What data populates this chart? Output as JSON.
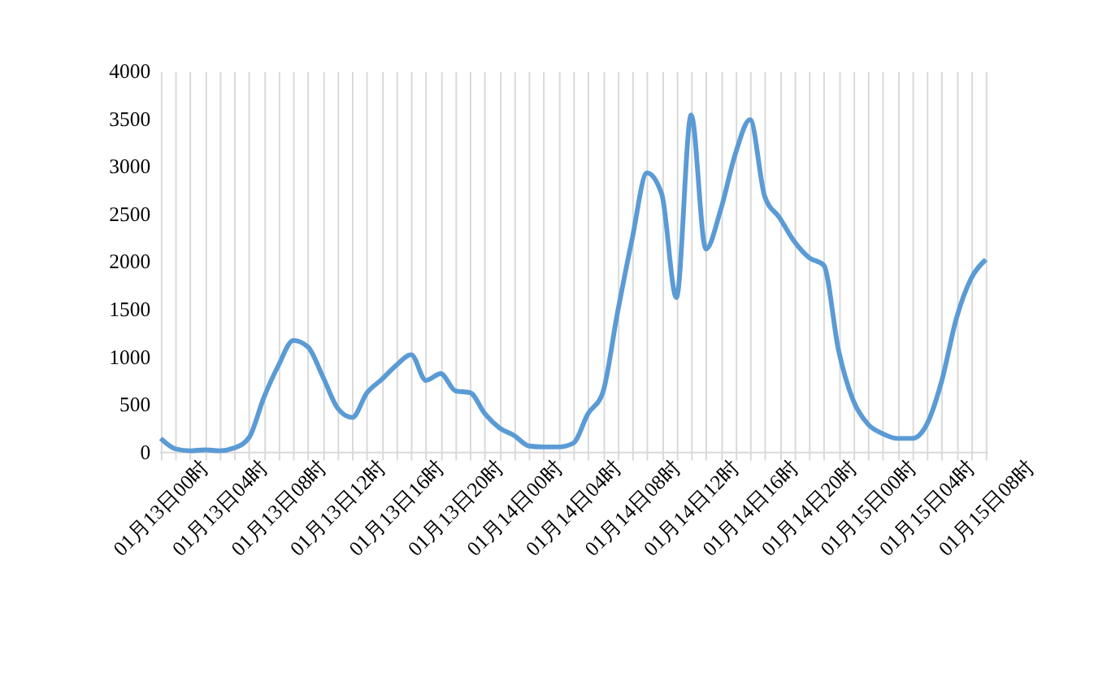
{
  "chart_data": {
    "type": "line",
    "categories": [
      "01月13日00时",
      null,
      null,
      null,
      "01月13日04时",
      null,
      null,
      null,
      "01月13日08时",
      null,
      null,
      null,
      "01月13日12时",
      null,
      null,
      null,
      "01月13日16时",
      null,
      null,
      null,
      "01月13日20时",
      null,
      null,
      null,
      "01月14日00时",
      null,
      null,
      null,
      "01月14日04时",
      null,
      null,
      null,
      "01月14日08时",
      null,
      null,
      null,
      "01月14日12时",
      null,
      null,
      null,
      "01月14日16时",
      null,
      null,
      null,
      "01月14日20时",
      null,
      null,
      null,
      "01月15日00时",
      null,
      null,
      null,
      "01月15日04时",
      null,
      null,
      null,
      "01月15日08时"
    ],
    "series": [
      {
        "color": "#5b9bd5",
        "values": [
          140,
          30,
          10,
          20,
          10,
          40,
          150,
          570,
          910,
          1170,
          1100,
          790,
          460,
          360,
          620,
          760,
          910,
          1020,
          750,
          820,
          640,
          620,
          400,
          250,
          170,
          60,
          50,
          50,
          90,
          400,
          620,
          1460,
          2240,
          2930,
          2710,
          1620,
          3540,
          2130,
          2540,
          3130,
          3490,
          2680,
          2460,
          2210,
          2040,
          1960,
          1070,
          540,
          290,
          190,
          140,
          140,
          290,
          740,
          1400,
          1820,
          2020
        ]
      }
    ],
    "ylim": [
      0,
      4000
    ],
    "yticks": [
      0,
      500,
      1000,
      1500,
      2000,
      2500,
      3000,
      3500,
      4000
    ],
    "grid": "x",
    "marker": "none",
    "line_style": "solid"
  }
}
